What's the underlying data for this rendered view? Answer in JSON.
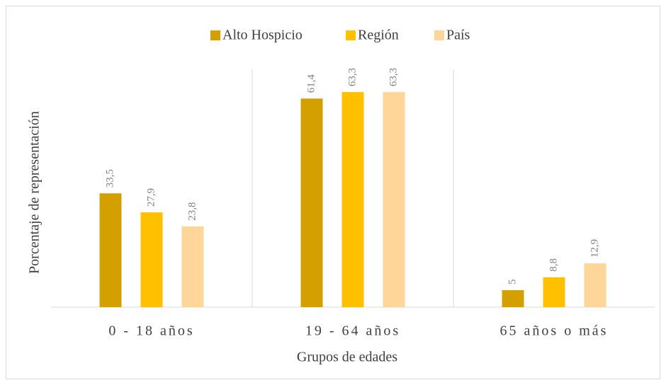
{
  "chart_data": {
    "type": "bar",
    "x_label": "Grupos de edades",
    "y_label": "Porcentaje de representación",
    "categories": [
      "0 - 18 años",
      "19 - 64 años",
      "65 años o más"
    ],
    "series": [
      {
        "name": "Alto Hospicio",
        "color": "#d4a000",
        "values": [
          33.5,
          61.4,
          5
        ],
        "value_labels": [
          "33,5",
          "61,4",
          "5"
        ]
      },
      {
        "name": "Región",
        "color": "#ffc000",
        "values": [
          27.9,
          63.3,
          8.8
        ],
        "value_labels": [
          "27,9",
          "63,3",
          "8,8"
        ]
      },
      {
        "name": "País",
        "color": "#ffd699",
        "values": [
          23.8,
          63.3,
          12.9
        ],
        "value_labels": [
          "23,8",
          "63,3",
          "12,9"
        ]
      }
    ],
    "ylim": [
      0,
      70
    ],
    "grid": false,
    "legend": "top"
  }
}
